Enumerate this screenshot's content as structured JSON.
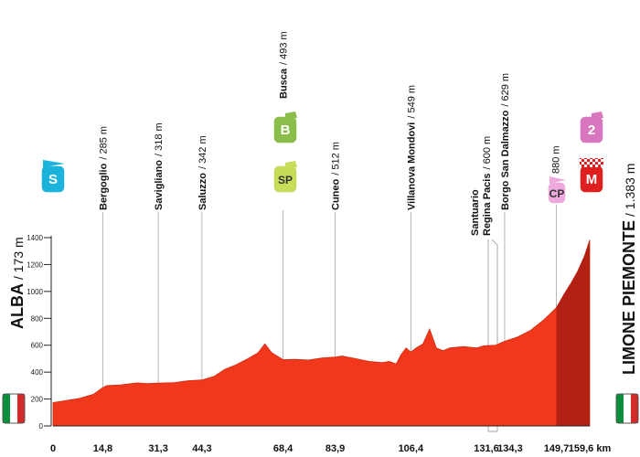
{
  "chart_data": {
    "type": "area",
    "xlabel": "",
    "ylabel": "",
    "xlim": [
      0,
      159.6
    ],
    "ylim": [
      0,
      1500
    ],
    "grid": false,
    "y_ticks": [
      "0",
      "200",
      "400",
      "600",
      "800",
      "1000",
      "1200",
      "1400"
    ],
    "x_ticks": [
      {
        "v": 0,
        "label": "0"
      },
      {
        "v": 14.8,
        "label": "14,8"
      },
      {
        "v": 31.3,
        "label": "31,3"
      },
      {
        "v": 44.3,
        "label": "44,3"
      },
      {
        "v": 68.4,
        "label": "68,4"
      },
      {
        "v": 83.9,
        "label": "83,9"
      },
      {
        "v": 106.4,
        "label": "106,4"
      },
      {
        "v": 131.6,
        "label": "131,6"
      },
      {
        "v": 134.3,
        "label": "134,3"
      },
      {
        "v": 149.7,
        "label": "149,7"
      },
      {
        "v": 159.6,
        "label": "159,6 km"
      }
    ],
    "start": {
      "name": "ALBA",
      "alt": "/ 173 m"
    },
    "finish": {
      "name": "LIMONE PIEMONTE",
      "alt": "/ 1.383 m"
    },
    "waypoints": [
      {
        "km": 14.8,
        "name": "Bergoglio",
        "alt": "/ 285 m"
      },
      {
        "km": 31.3,
        "name": "Savigliano",
        "alt": "/ 318 m"
      },
      {
        "km": 44.3,
        "name": "Saluzzo",
        "alt": "/ 342 m"
      },
      {
        "km": 68.4,
        "name": "Busca",
        "alt": "/ 493 m"
      },
      {
        "km": 83.9,
        "name": "Cuneo",
        "alt": "/ 512 m"
      },
      {
        "km": 106.4,
        "name": "Villanova Mondovì",
        "alt": "/ 549 m"
      },
      {
        "km": 131.6,
        "name": "Santuario",
        "name2": "Regina Pacis",
        "alt": "/ 600 m"
      },
      {
        "km": 134.3,
        "name": "Borgo San Dalmazzo",
        "alt": "/ 629 m"
      },
      {
        "km": 149.7,
        "name": "",
        "alt": "880 m"
      }
    ],
    "markers": [
      {
        "label": "S",
        "color": "#1bb3dc",
        "km": 0
      },
      {
        "label": "B",
        "color": "#8bbd4a",
        "km": 68.4
      },
      {
        "label": "SP",
        "color": "#c8dc5a",
        "km": 68.4
      },
      {
        "label": "CP",
        "color": "#eeaadd",
        "km": 149.7
      },
      {
        "label": "2",
        "color": "#d877c0",
        "km": 159.6
      },
      {
        "label": "M",
        "color": "#e02020",
        "km": 159.6
      }
    ],
    "profile_km": [
      0,
      3,
      8,
      12,
      14.8,
      16,
      20,
      25,
      28,
      31.3,
      36,
      40,
      44.3,
      48,
      51,
      54,
      58,
      61,
      63,
      65,
      68.4,
      72,
      76,
      80,
      83.9,
      86,
      90,
      94,
      98,
      100,
      102,
      103.5,
      105,
      106.4,
      108,
      110,
      112,
      114,
      116,
      118,
      122,
      126,
      128,
      131.6,
      134.3,
      138,
      142,
      146,
      149.7,
      152,
      154,
      156,
      158,
      159.6
    ],
    "profile_alt": [
      173,
      185,
      205,
      235,
      285,
      300,
      305,
      320,
      315,
      318,
      322,
      335,
      342,
      370,
      420,
      450,
      500,
      545,
      610,
      545,
      493,
      495,
      490,
      505,
      512,
      520,
      500,
      480,
      470,
      480,
      460,
      530,
      580,
      549,
      580,
      610,
      720,
      580,
      560,
      580,
      590,
      580,
      595,
      600,
      629,
      660,
      710,
      790,
      880,
      980,
      1060,
      1150,
      1260,
      1383
    ]
  }
}
